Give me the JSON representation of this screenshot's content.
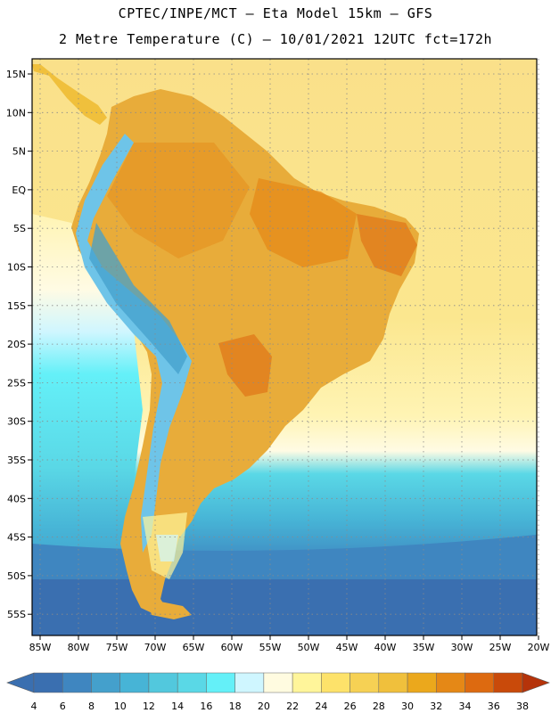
{
  "header": {
    "line1": "CPTEC/INPE/MCT —  Eta Model 15km — GFS",
    "line2": "2 Metre Temperature (C) — 10/01/2021 12UTC fct=172h"
  },
  "axes": {
    "lat_labels": [
      "15N",
      "10N",
      "5N",
      "EQ",
      "5S",
      "10S",
      "15S",
      "20S",
      "25S",
      "30S",
      "35S",
      "40S",
      "45S",
      "50S",
      "55S"
    ],
    "lon_labels": [
      "85W",
      "80W",
      "75W",
      "70W",
      "65W",
      "60W",
      "55W",
      "50W",
      "45W",
      "40W",
      "35W",
      "30W",
      "25W",
      "20W"
    ]
  },
  "colorbar": {
    "ticks": [
      "4",
      "6",
      "8",
      "10",
      "12",
      "14",
      "16",
      "18",
      "20",
      "22",
      "24",
      "26",
      "28",
      "30",
      "32",
      "34",
      "36",
      "38"
    ],
    "colors": [
      "#3a6fb0",
      "#3f86c0",
      "#44a0cc",
      "#47b4d6",
      "#52c8dd",
      "#5ad8e6",
      "#64f0f8",
      "#cff6ff",
      "#fffbe0",
      "#fff59a",
      "#fde26a",
      "#f6d154",
      "#f0c03c",
      "#eba81c",
      "#e58816",
      "#dd6a10",
      "#c94a0a",
      "#b5330a"
    ]
  },
  "map_colors": {
    "frame": "#000000",
    "grid": "#8a8a8a",
    "land": "#e8ac3a",
    "land_hot": "#d9741a",
    "andes": "#6ec4e8",
    "ocean_warm": "#f8de7a",
    "ocean_mild": "#fff4a8",
    "ocean_cool": "#fffbe0",
    "ocean_cold1": "#5ad8e6",
    "ocean_cold2": "#44a0cc",
    "ocean_cold3": "#3a6fb0"
  }
}
